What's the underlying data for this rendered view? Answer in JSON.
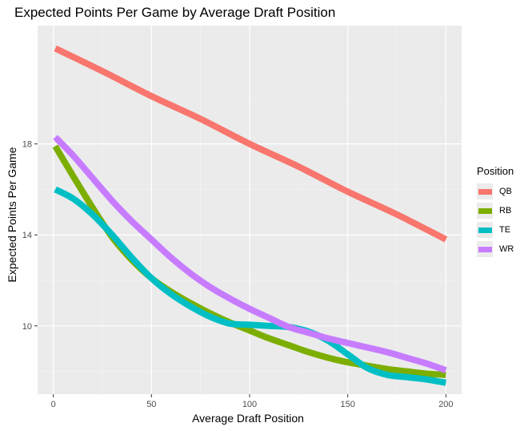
{
  "chart_data": {
    "type": "line",
    "title": "Expected Points Per Game by Average Draft Position",
    "xlabel": "Average Draft Position",
    "ylabel": "Expected Points Per Game",
    "xlim": [
      -8,
      208
    ],
    "ylim": [
      7,
      23.2
    ],
    "x_ticks": [
      0,
      50,
      100,
      150,
      200
    ],
    "y_ticks": [
      10,
      14,
      18
    ],
    "grid": true,
    "legend": {
      "title": "Position",
      "position": "right"
    },
    "series": [
      {
        "name": "QB",
        "color": "#F8766D",
        "x": [
          1,
          25,
          50,
          75,
          100,
          125,
          150,
          175,
          200
        ],
        "values": [
          22.2,
          21.2,
          20.1,
          19.1,
          18.0,
          17.0,
          15.9,
          14.9,
          13.8
        ]
      },
      {
        "name": "RB",
        "color": "#7CAE00",
        "x": [
          1,
          10,
          20,
          30,
          40,
          50,
          60,
          70,
          80,
          90,
          100,
          110,
          120,
          130,
          140,
          150,
          160,
          170,
          180,
          190,
          200
        ],
        "values": [
          17.9,
          16.6,
          15.2,
          13.9,
          12.9,
          12.1,
          11.5,
          11.0,
          10.55,
          10.15,
          9.8,
          9.45,
          9.15,
          8.85,
          8.6,
          8.4,
          8.25,
          8.1,
          8.0,
          7.9,
          7.85
        ]
      },
      {
        "name": "TE",
        "color": "#00BFC4",
        "x": [
          1,
          10,
          20,
          30,
          40,
          50,
          60,
          70,
          80,
          90,
          100,
          110,
          120,
          130,
          140,
          150,
          160,
          170,
          180,
          190,
          200
        ],
        "values": [
          16.0,
          15.6,
          14.9,
          14.0,
          13.0,
          12.1,
          11.4,
          10.85,
          10.4,
          10.1,
          10.05,
          10.0,
          9.95,
          9.75,
          9.35,
          8.75,
          8.15,
          7.85,
          7.75,
          7.65,
          7.5
        ]
      },
      {
        "name": "WR",
        "color": "#C77CFF",
        "x": [
          1,
          10,
          20,
          30,
          40,
          50,
          60,
          70,
          80,
          90,
          100,
          110,
          120,
          130,
          140,
          150,
          160,
          170,
          180,
          190,
          200
        ],
        "values": [
          18.3,
          17.5,
          16.5,
          15.5,
          14.6,
          13.8,
          13.0,
          12.3,
          11.7,
          11.2,
          10.75,
          10.35,
          9.95,
          9.7,
          9.45,
          9.25,
          9.05,
          8.85,
          8.6,
          8.35,
          8.05
        ]
      }
    ]
  }
}
